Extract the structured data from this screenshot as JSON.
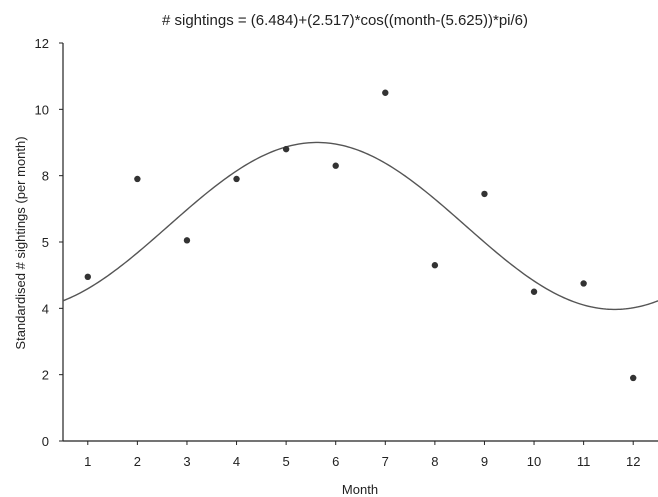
{
  "chart_data": {
    "type": "scatter",
    "title": "# sightings = (6.484)+(2.517)*cos((month-(5.625))*pi/6)",
    "xlabel": "Month",
    "ylabel": "Standardised # sightings (per month)",
    "x": [
      1,
      2,
      3,
      4,
      5,
      6,
      7,
      8,
      9,
      10,
      11,
      12
    ],
    "x_tick_labels": [
      "1",
      "2",
      "3",
      "4",
      "5",
      "6",
      "7",
      "8",
      "9",
      "10",
      "11",
      "12"
    ],
    "y_tick_labels": [
      "0",
      "2",
      "4",
      "5",
      "8",
      "10",
      "12"
    ],
    "xlim": [
      0.5,
      12.5
    ],
    "ylim": [
      0,
      12
    ],
    "grid": false,
    "series": [
      {
        "type": "scatter",
        "x": [
          1,
          2,
          3,
          4,
          5,
          6,
          7,
          8,
          9,
          10,
          11,
          12
        ],
        "y": [
          4.95,
          7.9,
          6.05,
          7.9,
          8.8,
          8.3,
          10.5,
          5.3,
          7.45,
          4.5,
          4.75,
          1.9
        ]
      },
      {
        "type": "line",
        "equation": {
          "a": 6.484,
          "b": 2.517,
          "c": 5.625,
          "period": 12
        }
      }
    ]
  },
  "colors": {
    "points": "#333333",
    "curve": "#555555",
    "axes": "#222222"
  }
}
